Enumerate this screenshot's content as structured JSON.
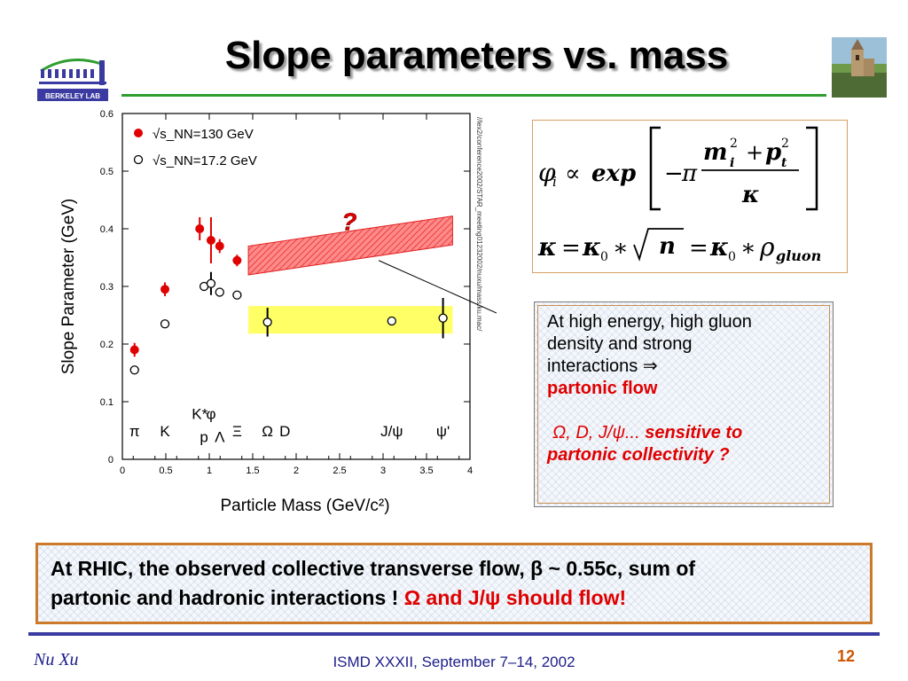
{
  "slide": {
    "title": "Slope parameters vs. mass",
    "logo_text": "BERKELEY LAB",
    "right_image": "castle-photo",
    "formula_icon": "slope-formula",
    "footer": {
      "author": "Nu Xu",
      "center": "ISMD XXXII, September 7–14, 2002",
      "page": "12"
    },
    "colors": {
      "accent_green": "#2f9e2f",
      "footer_blue": "#3a3aa0",
      "highlight_red": "#e00000",
      "box_orange": "#cc7a2a"
    }
  },
  "note": {
    "line1": "At high energy, high gluon",
    "line2": "density and strong",
    "line3": "interactions ⇒",
    "line4": "partonic flow",
    "line5_prefix": "Ω, D, J/ψ...",
    "line5_suffix": "sensitive to",
    "line6": "partonic collectivity ?"
  },
  "summary": {
    "line1": "At RHIC, the observed collective transverse flow, β ~ 0.55c,  sum of",
    "line2_plain": "partonic and hadronic interactions !",
    "line2_red": "Ω and J/ψ should flow!"
  },
  "chart_data": {
    "type": "scatter",
    "xlabel": "Particle Mass (GeV/c²)",
    "ylabel": "Slope Parameter (GeV)",
    "xlim": [
      0,
      4
    ],
    "ylim": [
      0,
      0.6
    ],
    "xticks": [
      "0",
      "0.5",
      "1",
      "1.5",
      "2",
      "2.5",
      "3",
      "3.5",
      "4"
    ],
    "yticks": [
      "0",
      "0.1",
      "0.2",
      "0.3",
      "0.4",
      "0.5",
      "0.6"
    ],
    "series": [
      {
        "name": "√s_NN=130 GeV",
        "marker": "filled",
        "color": "#e00000",
        "x": [
          0.14,
          0.49,
          0.89,
          1.02,
          1.12,
          1.32
        ],
        "y": [
          0.19,
          0.295,
          0.4,
          0.38,
          0.37,
          0.345
        ],
        "err": [
          0.012,
          0.012,
          0.02,
          0.04,
          0.012,
          0.01
        ]
      },
      {
        "name": "√s_NN=17.2 GeV",
        "marker": "open",
        "color": "#000000",
        "x": [
          0.14,
          0.49,
          0.94,
          1.02,
          1.12,
          1.32,
          1.67,
          3.1,
          3.69
        ],
        "y": [
          0.155,
          0.235,
          0.3,
          0.305,
          0.29,
          0.285,
          0.238,
          0.24,
          0.245
        ],
        "err": [
          0,
          0,
          0,
          0.02,
          0,
          0,
          0.025,
          0,
          0.035
        ]
      }
    ],
    "particle_labels": [
      {
        "text": "π",
        "x": 0.14,
        "y": 0.04
      },
      {
        "text": "K",
        "x": 0.49,
        "y": 0.04
      },
      {
        "text": "K*",
        "x": 0.89,
        "y": 0.07
      },
      {
        "text": "φ",
        "x": 1.02,
        "y": 0.07
      },
      {
        "text": "p",
        "x": 0.94,
        "y": 0.03
      },
      {
        "text": "Λ",
        "x": 1.12,
        "y": 0.03
      },
      {
        "text": "Ξ",
        "x": 1.32,
        "y": 0.04
      },
      {
        "text": "Ω",
        "x": 1.67,
        "y": 0.04
      },
      {
        "text": "D",
        "x": 1.87,
        "y": 0.04
      },
      {
        "text": "J/ψ",
        "x": 3.1,
        "y": 0.04
      },
      {
        "text": "ψ'",
        "x": 3.69,
        "y": 0.04
      }
    ],
    "bands": [
      {
        "label": "?",
        "color": "#ff5a5a",
        "x0": 1.45,
        "x1": 3.8,
        "y0_start": 0.32,
        "y0_end": 0.372,
        "width": 0.05
      },
      {
        "label": "",
        "color": "#ffff66",
        "x0": 1.45,
        "x1": 3.8,
        "y0_start": 0.218,
        "y0_end": 0.218,
        "width": 0.048
      }
    ],
    "side_text": "//lex2/conference2002/STAR_meeting01232002/nuxu/mass.ku.mac/"
  }
}
